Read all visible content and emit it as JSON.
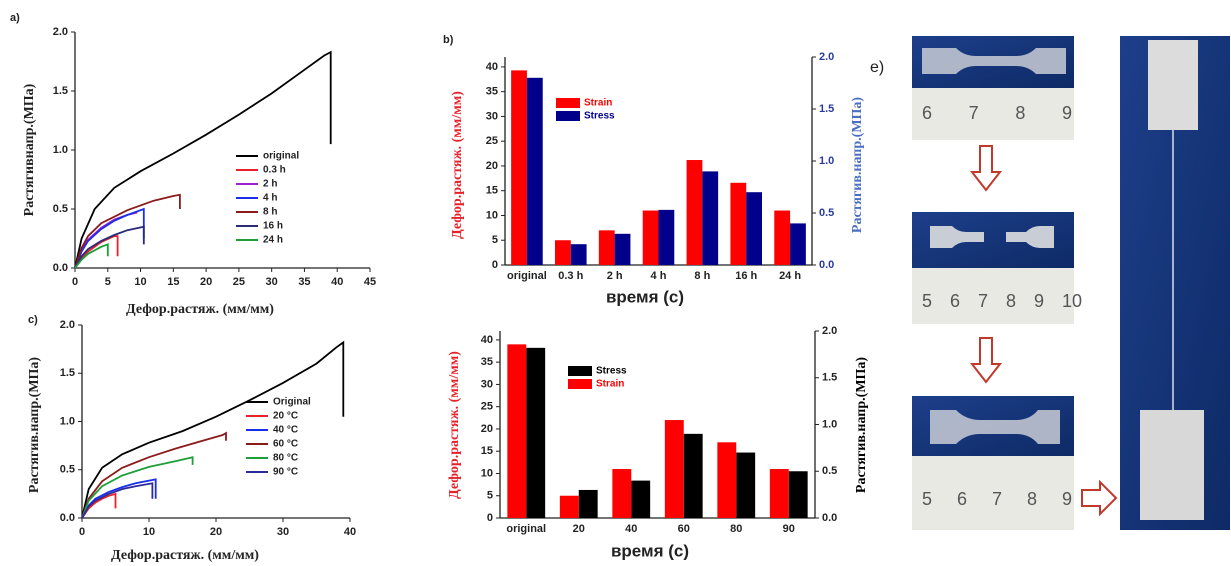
{
  "chart_data": [
    {
      "type": "line",
      "label": "a)",
      "xlabel": "Дефор.растяж. (мм/мм)",
      "ylabel": "Растягивнапр.(МПа)",
      "xlim": [
        0,
        45
      ],
      "xticks": [
        0,
        5,
        10,
        15,
        20,
        25,
        30,
        35,
        40,
        45
      ],
      "ylim": [
        0,
        2.0
      ],
      "yticks": [
        {
          "value": 0,
          "label": "0.0"
        },
        {
          "value": 0.5,
          "label": "0.5"
        },
        {
          "value": 1.0,
          "label": "1.0"
        },
        {
          "value": 1.5,
          "label": "1.5"
        },
        {
          "value": 2.0,
          "label": "2.0"
        }
      ],
      "legend": "center right",
      "series": [
        {
          "name": "original",
          "color": "#000000",
          "x": [
            0,
            1,
            3,
            6,
            10,
            15,
            20,
            25,
            30,
            35,
            38,
            39,
            39
          ],
          "values": [
            0,
            0.25,
            0.5,
            0.68,
            0.82,
            0.97,
            1.13,
            1.3,
            1.48,
            1.68,
            1.8,
            1.83,
            1.05
          ]
        },
        {
          "name": "0.3 h",
          "color": "#e8202a",
          "x": [
            0,
            1,
            2,
            4,
            6,
            6.5,
            6.5
          ],
          "values": [
            0,
            0.08,
            0.14,
            0.22,
            0.27,
            0.27,
            0.1
          ]
        },
        {
          "name": "2 h",
          "color": "#a020d0",
          "x": [
            0,
            1,
            2,
            4,
            6,
            8,
            9.5
          ],
          "values": [
            0,
            0.15,
            0.24,
            0.34,
            0.41,
            0.45,
            0.47
          ]
        },
        {
          "name": "4 h",
          "color": "#1a2ee8",
          "x": [
            0,
            1,
            2,
            4,
            6,
            8,
            10.5,
            10.5
          ],
          "values": [
            0,
            0.14,
            0.23,
            0.33,
            0.4,
            0.45,
            0.5,
            0.25
          ]
        },
        {
          "name": "8 h",
          "color": "#8b1a1a",
          "x": [
            0,
            1,
            2,
            4,
            8,
            12,
            15,
            16,
            16
          ],
          "values": [
            0,
            0.17,
            0.27,
            0.38,
            0.49,
            0.57,
            0.61,
            0.62,
            0.5
          ]
        },
        {
          "name": "16 h",
          "color": "#2a2a78",
          "x": [
            0,
            1,
            2,
            4,
            6,
            8,
            10.5,
            10.5
          ],
          "values": [
            0,
            0.1,
            0.16,
            0.23,
            0.28,
            0.32,
            0.35,
            0.2
          ]
        },
        {
          "name": "24 h",
          "color": "#1e9e3a",
          "x": [
            0,
            1,
            2,
            3,
            4,
            5,
            5
          ],
          "values": [
            0,
            0.07,
            0.12,
            0.15,
            0.18,
            0.2,
            0.1
          ]
        }
      ]
    },
    {
      "type": "bar",
      "label": "b)",
      "xlabel": "время  (с)",
      "ylabel": "Дефор.растяж.  (мм/мм)",
      "y2label": "Растягив.напр.(МПа)",
      "ylabel_color": "#e8202a",
      "y2label_color": "#4a6fc0",
      "categories": [
        "original",
        "0.3 h",
        "2 h",
        "4 h",
        "8 h",
        "16 h",
        "24 h"
      ],
      "ylim": [
        0,
        42
      ],
      "yticks": [
        0,
        5,
        10,
        15,
        20,
        25,
        30,
        35,
        40
      ],
      "y2lim": [
        0,
        2.0
      ],
      "y2ticks": [
        {
          "value": 0,
          "label": "0.0"
        },
        {
          "value": 0.5,
          "label": "0.5"
        },
        {
          "value": 1.0,
          "label": "1.0"
        },
        {
          "value": 1.5,
          "label": "1.5"
        },
        {
          "value": 2.0,
          "label": "2.0"
        }
      ],
      "legend": "upper center",
      "series": [
        {
          "name": "Strain",
          "color": "#ff0000",
          "values": [
            39.3,
            5,
            7,
            11,
            21.2,
            16.6,
            11
          ]
        },
        {
          "name": "Stress",
          "color": "#00008b",
          "axis": "y2",
          "values": [
            1.8,
            0.2,
            0.3,
            0.53,
            0.9,
            0.7,
            0.4
          ]
        }
      ]
    },
    {
      "type": "line",
      "label": "c)",
      "xlabel": "Дефор.растяж. (мм/мм)",
      "ylabel": "Растягив.напр.(МПа)",
      "xlim": [
        0,
        40
      ],
      "xticks": [
        0,
        10,
        20,
        30,
        40
      ],
      "ylim": [
        0,
        2.0
      ],
      "yticks": [
        {
          "value": 0,
          "label": "0.0"
        },
        {
          "value": 0.5,
          "label": "0.5"
        },
        {
          "value": 1.0,
          "label": "1.0"
        },
        {
          "value": 1.5,
          "label": "1.5"
        },
        {
          "value": 2.0,
          "label": "2.0"
        }
      ],
      "legend": "center right",
      "series": [
        {
          "name": "Original",
          "color": "#000000",
          "x": [
            0,
            1,
            3,
            6,
            10,
            15,
            20,
            25,
            30,
            35,
            38,
            39,
            39
          ],
          "values": [
            0,
            0.3,
            0.52,
            0.66,
            0.78,
            0.9,
            1.05,
            1.22,
            1.4,
            1.6,
            1.77,
            1.82,
            1.05
          ]
        },
        {
          "name": "20 °C",
          "color": "#e8202a",
          "x": [
            0,
            1,
            2,
            3,
            4,
            5,
            5
          ],
          "values": [
            0,
            0.1,
            0.16,
            0.2,
            0.23,
            0.25,
            0.1
          ]
        },
        {
          "name": "40 °C",
          "color": "#1a2ee8",
          "x": [
            0,
            1,
            2,
            4,
            6,
            8,
            11,
            11
          ],
          "values": [
            0,
            0.13,
            0.2,
            0.27,
            0.32,
            0.36,
            0.4,
            0.2
          ]
        },
        {
          "name": "60 °C",
          "color": "#8b1a1a",
          "x": [
            0,
            1,
            3,
            6,
            10,
            14,
            18,
            21,
            21.5,
            21.5
          ],
          "values": [
            0,
            0.2,
            0.38,
            0.52,
            0.63,
            0.72,
            0.8,
            0.86,
            0.88,
            0.8
          ]
        },
        {
          "name": "80 °C",
          "color": "#1e9e3a",
          "x": [
            0,
            1,
            3,
            6,
            10,
            14,
            16.5,
            16.5
          ],
          "values": [
            0,
            0.18,
            0.33,
            0.44,
            0.53,
            0.59,
            0.63,
            0.55
          ]
        },
        {
          "name": "90 °C",
          "color": "#2a2a9e",
          "x": [
            0,
            1,
            2,
            4,
            6,
            8,
            10.5,
            10.5
          ],
          "values": [
            0,
            0.12,
            0.18,
            0.25,
            0.3,
            0.33,
            0.36,
            0.2
          ]
        }
      ]
    },
    {
      "type": "bar",
      "xlabel": "время  (с)",
      "ylabel": "Дефор.растяж.  (мм/мм)",
      "y2label": "Растягив.напр.(МПа)",
      "ylabel_color": "#e8202a",
      "y2label_color": "#000000",
      "categories": [
        "original",
        "20",
        "40",
        "60",
        "80",
        "90"
      ],
      "ylim": [
        0,
        42
      ],
      "yticks": [
        0,
        5,
        10,
        15,
        20,
        25,
        30,
        35,
        40
      ],
      "y2lim": [
        0,
        2.0
      ],
      "y2ticks": [
        {
          "value": 0,
          "label": "0.0"
        },
        {
          "value": 0.5,
          "label": "0.5"
        },
        {
          "value": 1.0,
          "label": "1.0"
        },
        {
          "value": 1.5,
          "label": "1.5"
        },
        {
          "value": 2.0,
          "label": "2.0"
        }
      ],
      "legend": "upper center",
      "series": [
        {
          "name": "Stress",
          "color": "#000000",
          "axis": "y2",
          "values": [
            1.82,
            0.3,
            0.4,
            0.9,
            0.7,
            0.5
          ]
        },
        {
          "name": "Strain",
          "color": "#ff0000",
          "values": [
            39,
            5,
            11,
            22,
            17,
            11
          ]
        }
      ]
    }
  ],
  "photo_panel": {
    "label": "e)",
    "rulers": [
      [
        "6",
        "7",
        "8",
        "9"
      ],
      [
        "5",
        "6",
        "7",
        "8",
        "9",
        "10"
      ],
      [
        "5",
        "6",
        "7",
        "8",
        "9"
      ]
    ]
  }
}
